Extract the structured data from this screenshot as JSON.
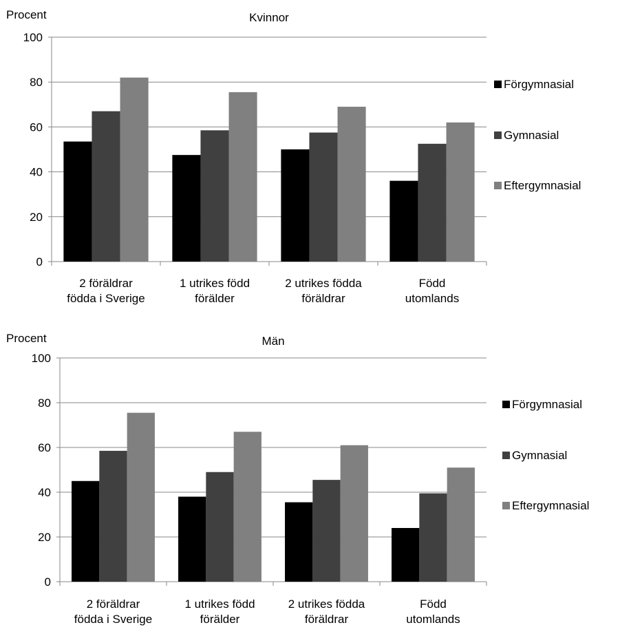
{
  "chart_data": [
    {
      "type": "bar",
      "title": "Kvinnor",
      "ylabel": "Procent",
      "ylim": [
        0,
        100
      ],
      "yticks": [
        0,
        20,
        40,
        60,
        80,
        100
      ],
      "grid": true,
      "legend_position": "right",
      "categories": [
        [
          "2 föräldrar",
          "födda i Sverige"
        ],
        [
          "1 utrikes född",
          "förälder"
        ],
        [
          "2 utrikes födda",
          "föräldrar"
        ],
        [
          "Född",
          "utomlands"
        ]
      ],
      "series": [
        {
          "name": "Förgymnasial",
          "color": "#000000",
          "values": [
            53.5,
            47.5,
            50,
            36
          ]
        },
        {
          "name": "Gymnasial",
          "color": "#404040",
          "values": [
            67,
            58.5,
            57.5,
            52.5
          ]
        },
        {
          "name": "Eftergymnasial",
          "color": "#808080",
          "values": [
            82,
            75.5,
            69,
            62
          ]
        }
      ]
    },
    {
      "type": "bar",
      "title": "Män",
      "ylabel": "Procent",
      "ylim": [
        0,
        100
      ],
      "yticks": [
        0,
        20,
        40,
        60,
        80,
        100
      ],
      "grid": true,
      "legend_position": "right",
      "categories": [
        [
          "2 föräldrar",
          "födda i Sverige"
        ],
        [
          "1 utrikes född",
          "förälder"
        ],
        [
          "2 utrikes födda",
          "föräldrar"
        ],
        [
          "Född",
          "utomlands"
        ]
      ],
      "series": [
        {
          "name": "Förgymnasial",
          "color": "#000000",
          "values": [
            45,
            38,
            35.5,
            24
          ]
        },
        {
          "name": "Gymnasial",
          "color": "#404040",
          "values": [
            58.5,
            49,
            45.5,
            39.5
          ]
        },
        {
          "name": "Eftergymnasial",
          "color": "#808080",
          "values": [
            75.5,
            67,
            61,
            51
          ]
        }
      ]
    }
  ]
}
